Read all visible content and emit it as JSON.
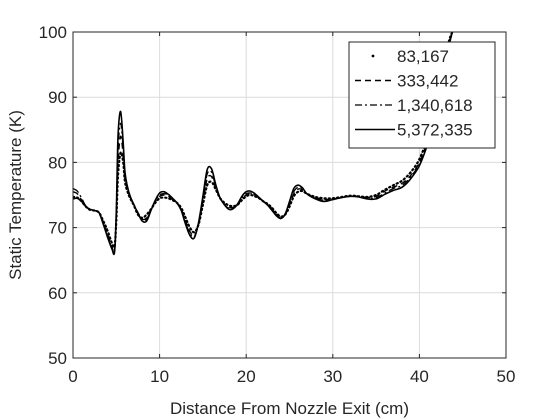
{
  "chart_data": {
    "type": "line",
    "title": "",
    "xlabel": "Distance From Nozzle Exit (cm)",
    "ylabel": "Static Temperature (K)",
    "xlim": [
      0,
      50
    ],
    "ylim": [
      50,
      100
    ],
    "x_ticks": [
      0,
      10,
      20,
      30,
      40,
      50
    ],
    "y_ticks": [
      50,
      60,
      70,
      80,
      90,
      100
    ],
    "grid": true,
    "legend_position": "top-right",
    "series": [
      {
        "name": "83,167",
        "style": "dotted",
        "color": "#000000",
        "x": [
          0,
          0.5,
          1,
          1.5,
          2,
          2.5,
          3,
          3.5,
          4,
          4.5,
          4.8,
          5,
          5.2,
          5.5,
          5.8,
          6,
          6.3,
          6.6,
          7,
          7.5,
          8,
          8.5,
          9,
          9.5,
          10,
          10.5,
          11,
          11.5,
          12,
          12.5,
          13,
          13.5,
          14,
          14.5,
          15,
          15.5,
          16,
          16.5,
          17,
          17.5,
          18,
          18.5,
          19,
          19.5,
          20,
          20.5,
          21,
          21.5,
          22,
          22.5,
          23,
          23.5,
          24,
          24.5,
          25,
          25.5,
          26,
          26.5,
          27,
          28,
          29,
          30,
          31,
          32,
          33,
          34,
          35,
          36,
          37,
          38,
          39,
          40,
          41,
          41.5,
          42,
          42.5,
          43,
          43.5,
          43.8
        ],
        "values": [
          74.7,
          74.6,
          74.0,
          73.2,
          72.7,
          72.6,
          72.3,
          71.0,
          69.5,
          67.6,
          67.2,
          71.0,
          78.0,
          81.5,
          80.0,
          77.0,
          75.5,
          74.5,
          73.5,
          72.0,
          71.5,
          72.0,
          72.8,
          73.8,
          74.5,
          74.6,
          74.5,
          74.2,
          73.8,
          73.0,
          71.5,
          70.0,
          69.3,
          70.5,
          73.5,
          76.5,
          77.0,
          75.8,
          74.5,
          73.8,
          73.4,
          73.3,
          73.5,
          74.2,
          74.8,
          75.0,
          74.8,
          74.5,
          74.0,
          73.6,
          73.0,
          72.2,
          71.7,
          72.0,
          73.2,
          74.8,
          75.5,
          75.6,
          75.2,
          74.7,
          74.5,
          74.5,
          74.7,
          74.9,
          74.8,
          74.7,
          75.0,
          75.8,
          76.5,
          77.2,
          78.5,
          80.5,
          84.0,
          86.5,
          90.0,
          93.5,
          96.5,
          99.0,
          100
        ]
      },
      {
        "name": "333,442",
        "style": "dashed",
        "color": "#000000",
        "x": [
          0,
          0.5,
          1,
          1.5,
          2,
          2.5,
          3,
          3.5,
          4,
          4.5,
          4.8,
          5,
          5.2,
          5.5,
          5.8,
          6,
          6.3,
          6.6,
          7,
          7.5,
          8,
          8.5,
          9,
          9.5,
          10,
          10.5,
          11,
          11.5,
          12,
          12.5,
          13,
          13.5,
          14,
          14.5,
          15,
          15.5,
          16,
          16.5,
          17,
          17.5,
          18,
          18.5,
          19,
          19.5,
          20,
          20.5,
          21,
          21.5,
          22,
          22.5,
          23,
          23.5,
          24,
          24.5,
          25,
          25.5,
          26,
          26.5,
          27,
          28,
          29,
          30,
          31,
          32,
          33,
          34,
          35,
          36,
          37,
          38,
          39,
          40,
          41,
          41.5,
          42,
          42.5,
          43,
          43.5,
          43.8
        ],
        "values": [
          75.5,
          75.2,
          74.2,
          73.2,
          72.7,
          72.6,
          72.3,
          70.8,
          69.0,
          67.0,
          66.6,
          71.5,
          80.0,
          84.0,
          81.0,
          77.5,
          75.8,
          74.6,
          73.6,
          72.3,
          71.3,
          71.5,
          72.8,
          74.0,
          74.8,
          75.0,
          74.8,
          74.3,
          73.8,
          72.8,
          71.0,
          69.4,
          68.8,
          70.5,
          74.0,
          77.5,
          77.8,
          76.0,
          74.5,
          73.6,
          73.1,
          73.1,
          73.5,
          74.4,
          75.0,
          75.2,
          75.0,
          74.5,
          74.0,
          73.5,
          72.9,
          72.0,
          71.5,
          72.0,
          73.5,
          75.2,
          75.9,
          75.8,
          75.2,
          74.6,
          74.3,
          74.4,
          74.6,
          74.8,
          74.8,
          74.6,
          74.8,
          75.6,
          76.2,
          76.8,
          78.0,
          80.0,
          83.5,
          86.0,
          89.5,
          93.0,
          96.0,
          98.8,
          100
        ]
      },
      {
        "name": "1,340,618",
        "style": "dashdot",
        "color": "#000000",
        "x": [
          0,
          0.5,
          1,
          1.5,
          2,
          2.5,
          3,
          3.5,
          4,
          4.5,
          4.8,
          5,
          5.2,
          5.5,
          5.8,
          6,
          6.3,
          6.6,
          7,
          7.5,
          8,
          8.5,
          9,
          9.5,
          10,
          10.5,
          11,
          11.5,
          12,
          12.5,
          13,
          13.5,
          14,
          14.5,
          15,
          15.5,
          16,
          16.5,
          17,
          17.5,
          18,
          18.5,
          19,
          19.5,
          20,
          20.5,
          21,
          21.5,
          22,
          22.5,
          23,
          23.5,
          24,
          24.5,
          25,
          25.5,
          26,
          26.5,
          27,
          28,
          29,
          30,
          31,
          32,
          33,
          34,
          35,
          36,
          37,
          38,
          39,
          40,
          41,
          41.5,
          42,
          42.5,
          43,
          43.5,
          43.8
        ],
        "values": [
          76.0,
          75.6,
          74.5,
          73.3,
          72.8,
          72.6,
          72.3,
          70.6,
          68.7,
          66.8,
          66.4,
          72.0,
          82.0,
          86.0,
          82.0,
          78.0,
          76.0,
          74.7,
          73.6,
          72.3,
          71.2,
          71.3,
          72.8,
          74.1,
          75.0,
          75.2,
          75.0,
          74.4,
          73.8,
          72.7,
          70.8,
          69.1,
          68.6,
          70.6,
          74.3,
          78.2,
          78.5,
          76.2,
          74.5,
          73.5,
          73.0,
          73.0,
          73.5,
          74.5,
          75.2,
          75.3,
          75.0,
          74.5,
          74.0,
          73.5,
          72.8,
          71.9,
          71.4,
          72.0,
          73.7,
          75.5,
          76.2,
          76.0,
          75.2,
          74.5,
          74.2,
          74.4,
          74.6,
          74.8,
          74.8,
          74.5,
          74.6,
          75.3,
          76.0,
          76.5,
          77.8,
          79.8,
          83.2,
          85.8,
          89.2,
          92.8,
          95.8,
          98.6,
          100
        ]
      },
      {
        "name": "5,372,335",
        "style": "solid",
        "color": "#000000",
        "x": [
          0,
          0.5,
          1,
          1.5,
          2,
          2.5,
          3,
          3.5,
          4,
          4.5,
          4.8,
          5,
          5.2,
          5.5,
          5.8,
          6,
          6.3,
          6.6,
          7,
          7.5,
          8,
          8.5,
          9,
          9.5,
          10,
          10.5,
          11,
          11.5,
          12,
          12.5,
          13,
          13.5,
          14,
          14.5,
          15,
          15.5,
          16,
          16.5,
          17,
          17.5,
          18,
          18.5,
          19,
          19.5,
          20,
          20.5,
          21,
          21.5,
          22,
          22.5,
          23,
          23.5,
          24,
          24.5,
          25,
          25.5,
          26,
          26.5,
          27,
          28,
          29,
          30,
          31,
          32,
          33,
          34,
          35,
          36,
          37,
          38,
          39,
          40,
          41,
          41.5,
          42,
          42.5,
          43,
          43.5,
          43.8
        ],
        "values": [
          74.4,
          74.5,
          74.0,
          73.2,
          72.8,
          72.6,
          72.3,
          70.5,
          68.5,
          66.7,
          66.3,
          72.5,
          84.0,
          87.8,
          83.0,
          78.5,
          76.2,
          74.8,
          73.6,
          72.2,
          71.0,
          71.0,
          72.6,
          74.2,
          75.3,
          75.5,
          75.1,
          74.5,
          73.8,
          72.6,
          70.5,
          68.8,
          68.4,
          70.8,
          74.8,
          78.9,
          79.0,
          76.5,
          74.5,
          73.5,
          72.8,
          72.9,
          73.6,
          74.8,
          75.5,
          75.6,
          75.2,
          74.6,
          74.0,
          73.4,
          72.6,
          71.8,
          71.4,
          72.1,
          74.0,
          76.0,
          76.5,
          76.1,
          75.2,
          74.4,
          74.0,
          74.3,
          74.6,
          74.8,
          74.7,
          74.4,
          74.4,
          75.1,
          75.7,
          76.2,
          77.5,
          79.5,
          83.0,
          85.5,
          89.0,
          92.5,
          95.5,
          98.4,
          100
        ]
      }
    ]
  }
}
